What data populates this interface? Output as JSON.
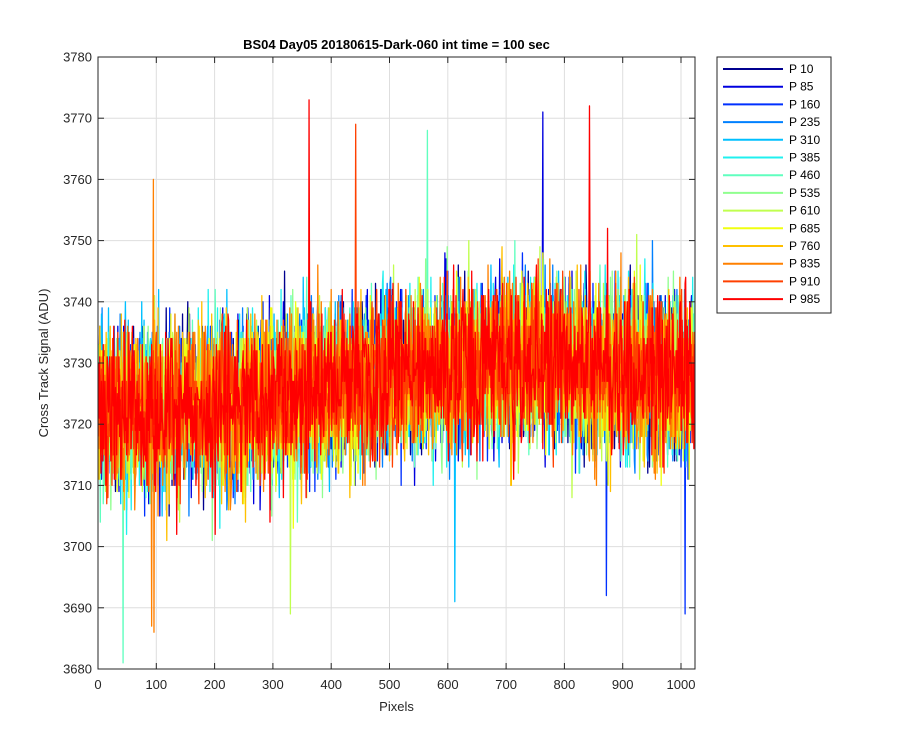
{
  "chart_data": {
    "type": "line",
    "title": "BS04 Day05 20180615-Dark-060 int time = 100 sec",
    "xlabel": "Pixels",
    "ylabel": "Cross Track Signal (ADU)",
    "xlim": [
      0,
      1024
    ],
    "ylim": [
      3680,
      3780
    ],
    "xticks": [
      0,
      100,
      200,
      300,
      400,
      500,
      600,
      700,
      800,
      900,
      1000
    ],
    "yticks": [
      3680,
      3690,
      3700,
      3710,
      3720,
      3730,
      3740,
      3750,
      3760,
      3770,
      3780
    ],
    "grid": true,
    "legend_position": "outside-top-right",
    "noise_seed": 20180615,
    "x": {
      "start": 1,
      "end": 1024,
      "step": 1
    },
    "baseline_trend": {
      "x": [
        0,
        100,
        200,
        300,
        400,
        500,
        600,
        700,
        800,
        900,
        1024
      ],
      "y": [
        3722,
        3722,
        3723,
        3724,
        3726,
        3728,
        3729,
        3730,
        3730,
        3729,
        3727
      ]
    },
    "noise_std": 6.5,
    "series": [
      {
        "name": "P 10",
        "color": "#00008f"
      },
      {
        "name": "P 85",
        "color": "#0000df"
      },
      {
        "name": "P 160",
        "color": "#0030ff"
      },
      {
        "name": "P 235",
        "color": "#0080ff"
      },
      {
        "name": "P 310",
        "color": "#00c0ff"
      },
      {
        "name": "P 385",
        "color": "#20f0ef"
      },
      {
        "name": "P 460",
        "color": "#60ffbf"
      },
      {
        "name": "P 535",
        "color": "#90ff8f"
      },
      {
        "name": "P 610",
        "color": "#c0ff4f"
      },
      {
        "name": "P 685",
        "color": "#f0ff10"
      },
      {
        "name": "P 760",
        "color": "#ffc000"
      },
      {
        "name": "P 835",
        "color": "#ff8000"
      },
      {
        "name": "P 910",
        "color": "#ff4000"
      },
      {
        "name": "P 985",
        "color": "#ff0000"
      }
    ],
    "annotations": [
      {
        "series": "P 985",
        "x": 362,
        "y": 3773
      },
      {
        "series": "P 985",
        "x": 843,
        "y": 3772
      },
      {
        "series": "P 85",
        "x": 763,
        "y": 3771
      },
      {
        "series": "P 910",
        "x": 442,
        "y": 3769
      },
      {
        "series": "P 460",
        "x": 565,
        "y": 3768
      },
      {
        "series": "P 835",
        "x": 95,
        "y": 3760
      },
      {
        "series": "P 460",
        "x": 43,
        "y": 3681
      },
      {
        "series": "P 835",
        "x": 96,
        "y": 3686
      },
      {
        "series": "P 835",
        "x": 92,
        "y": 3687
      },
      {
        "series": "P 160",
        "x": 1007,
        "y": 3689
      },
      {
        "series": "P 610",
        "x": 330,
        "y": 3689
      },
      {
        "series": "P 310",
        "x": 612,
        "y": 3691
      },
      {
        "series": "P 160",
        "x": 872,
        "y": 3692
      }
    ]
  }
}
